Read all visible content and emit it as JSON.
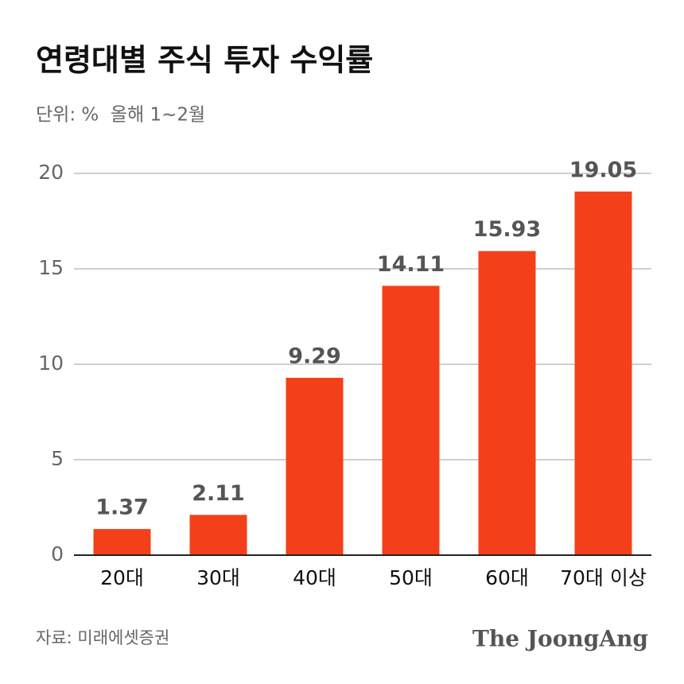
{
  "chart_data": {
    "type": "bar",
    "title": "연령대별 주식 투자 수익률",
    "subtitle": "단위: %  올해 1~2월",
    "categories": [
      "20대",
      "30대",
      "40대",
      "50대",
      "60대",
      "70대 이상"
    ],
    "values": [
      1.37,
      2.11,
      9.29,
      14.11,
      15.93,
      19.05
    ],
    "color": "#f4401a",
    "ylim": [
      0,
      20
    ],
    "yticks": [
      0,
      5,
      10,
      15,
      20
    ],
    "grid": true,
    "source": "자료: 미래에셋증권",
    "brand": "The JoongAng"
  }
}
